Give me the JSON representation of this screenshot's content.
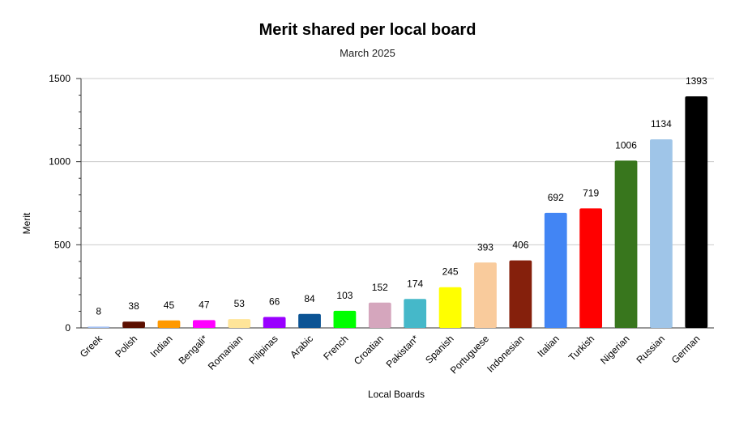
{
  "chart_data": {
    "type": "bar",
    "title": "Merit shared per local board",
    "subtitle": "March 2025",
    "xlabel": "Local Boards",
    "ylabel": "Merit",
    "ylim": [
      0,
      1500
    ],
    "yticks": [
      0,
      500,
      1000,
      1500
    ],
    "grid": true,
    "legend": "none",
    "categories": [
      "Greek",
      "Polish",
      "Indian",
      "Bengali*",
      "Romanian",
      "Pilipinas",
      "Arabic",
      "French",
      "Croatian",
      "Pakistan*",
      "Spanish",
      "Portuguese",
      "Indonesian",
      "Italian",
      "Turkish",
      "Nigerian",
      "Russian",
      "German"
    ],
    "values": [
      8,
      38,
      45,
      47,
      53,
      66,
      84,
      103,
      152,
      174,
      245,
      393,
      406,
      692,
      719,
      1006,
      1134,
      1393
    ],
    "colors": [
      "#a4c2f4",
      "#5b0f00",
      "#ff9900",
      "#ff00ff",
      "#ffe599",
      "#9900ff",
      "#0b5394",
      "#00ff00",
      "#d5a6bd",
      "#45b8c9",
      "#ffff00",
      "#f9cb9c",
      "#85200c",
      "#4285f4",
      "#ff0000",
      "#38761d",
      "#9fc5e8",
      "#000000"
    ]
  }
}
